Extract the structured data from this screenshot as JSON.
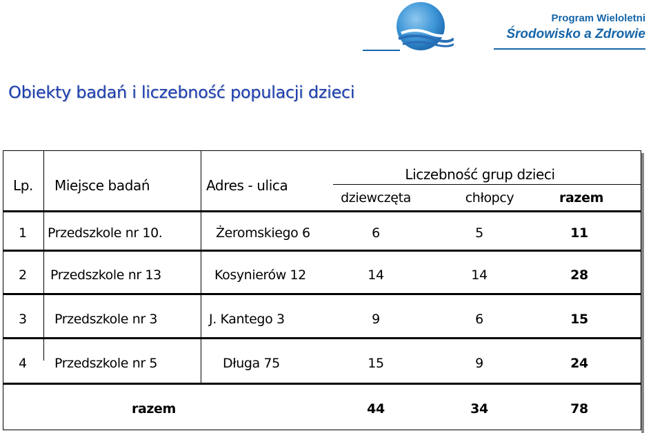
{
  "header": {
    "logo_icon": "globe-waves-logo",
    "program_line1": "Program Wieloletni",
    "program_line2": "Środowisko a Zdrowie",
    "brand_color": "#1565a8"
  },
  "page_title": "Obiekty badań i liczebność populacji dzieci",
  "table": {
    "headers": {
      "lp": "Lp.",
      "place": "Miejsce badań",
      "address": "Adres - ulica",
      "group": "Liczebność grup dzieci",
      "girls": "dziewczęta",
      "boys": "chłopcy",
      "total": "razem"
    },
    "rows": [
      {
        "lp": "1",
        "place": "Przedszkole nr 10.",
        "address": "Żeromskiego 6",
        "girls": "6",
        "boys": "5",
        "total": "11"
      },
      {
        "lp": "2",
        "place": "Przedszkole nr 13",
        "address": "Kosynierów 12",
        "girls": "14",
        "boys": "14",
        "total": "28"
      },
      {
        "lp": "3",
        "place": "Przedszkole nr 3",
        "address": "J. Kantego 3",
        "girls": "9",
        "boys": "6",
        "total": "15"
      },
      {
        "lp": "4",
        "place": "Przedszkole nr 5",
        "address": "Długa 75",
        "girls": "15",
        "boys": "9",
        "total": "24"
      }
    ],
    "summary": {
      "label": "razem",
      "girls": "44",
      "boys": "34",
      "total": "78"
    }
  }
}
